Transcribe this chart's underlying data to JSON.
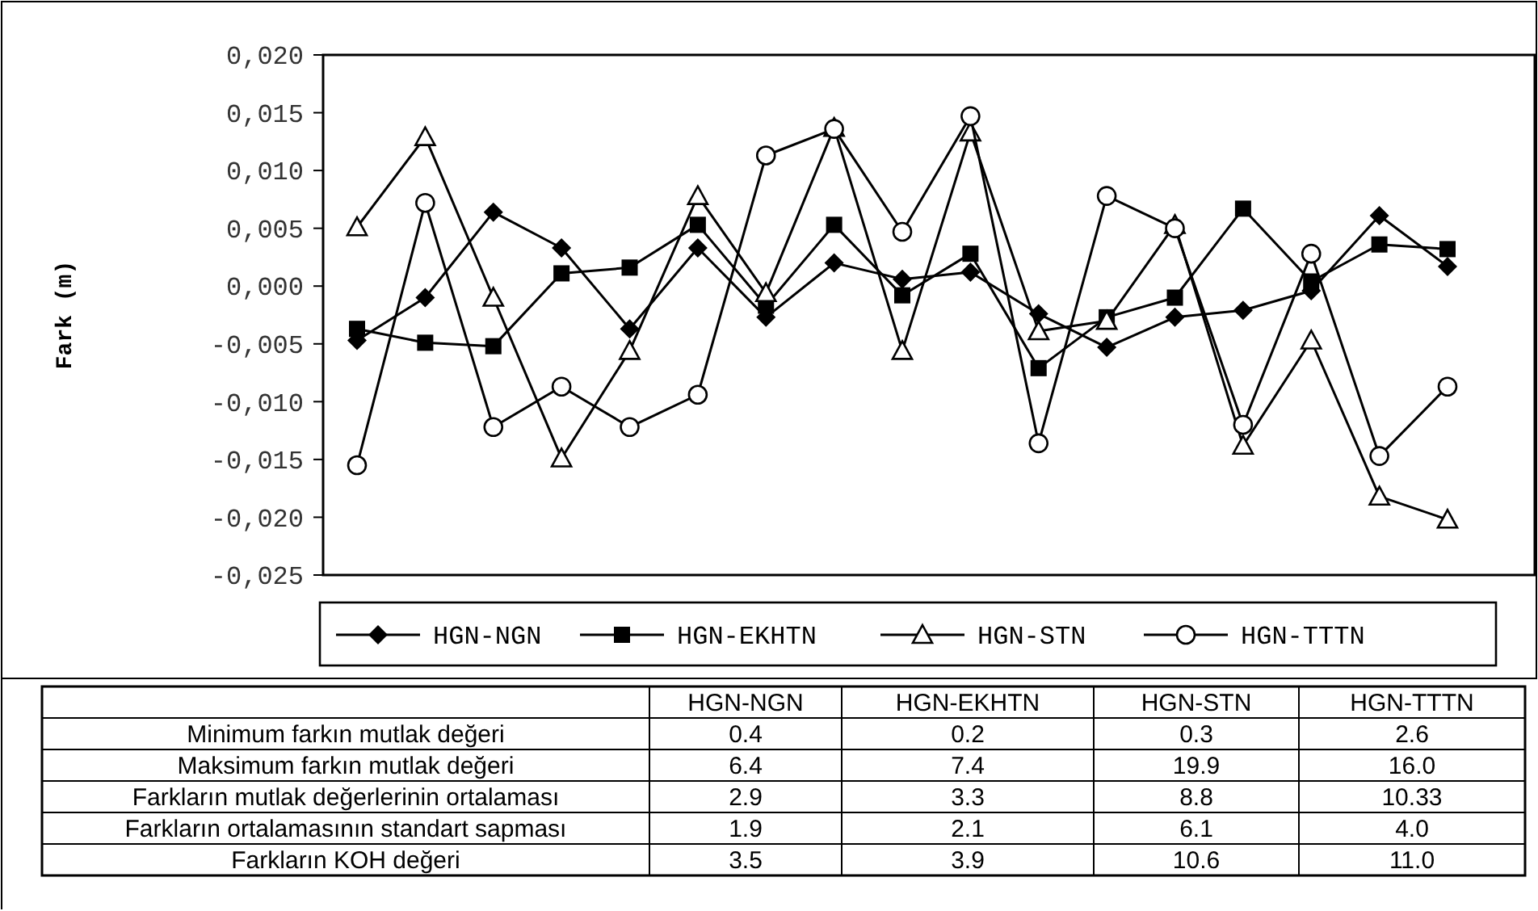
{
  "chart_data": [
    {
      "type": "line",
      "ylabel": "Fark (m)",
      "categories": [
        null,
        null,
        null,
        null,
        null,
        null,
        null,
        null,
        null,
        null,
        null,
        null,
        null,
        null,
        null,
        null,
        null
      ],
      "ylim": [
        -0.025,
        0.02
      ],
      "yticks": [
        {
          "value": 0.02,
          "label": "0,020"
        },
        {
          "value": 0.015,
          "label": "0,015"
        },
        {
          "value": 0.01,
          "label": "0,010"
        },
        {
          "value": 0.005,
          "label": "0,005"
        },
        {
          "value": 0,
          "label": "0,000"
        },
        {
          "value": -0.005,
          "label": "-0,005"
        },
        {
          "value": -0.01,
          "label": "-0,010"
        },
        {
          "value": -0.015,
          "label": "-0,015"
        },
        {
          "value": -0.02,
          "label": "-0,020"
        },
        {
          "value": -0.025,
          "label": "-0,025"
        }
      ],
      "grid": false,
      "legend": "bottom",
      "tick_labels": "y",
      "line_style": "solid",
      "series": [
        {
          "name": "HGN-NGN",
          "color": "#000000",
          "marker": "diamond",
          "values": [
            -0.0047,
            -0.001,
            0.0064,
            0.0033,
            -0.0037,
            0.0033,
            -0.0027,
            0.002,
            0.0006,
            0.0012,
            -0.0024,
            -0.0053,
            -0.0027,
            -0.0021,
            -0.0004,
            0.0061,
            0.0017
          ]
        },
        {
          "name": "HGN-EKHTN",
          "color": "#000000",
          "marker": "square",
          "values": [
            -0.0037,
            -0.0049,
            -0.0052,
            0.0011,
            0.0016,
            0.0053,
            -0.0017,
            0.0053,
            -0.0008,
            0.0028,
            -0.0071,
            -0.0027,
            -0.001,
            0.0067,
            0.0004,
            0.0036,
            0.0032
          ]
        },
        {
          "name": "HGN-STN",
          "color": "#000000",
          "marker": "triangle",
          "values": [
            0.0051,
            0.0129,
            -0.001,
            -0.0149,
            -0.0056,
            0.0078,
            -0.0006,
            0.0137,
            -0.0056,
            0.0133,
            -0.0039,
            -0.003,
            0.0053,
            -0.0138,
            -0.0047,
            -0.0182,
            -0.0202
          ]
        },
        {
          "name": "HGN-TTTN",
          "color": "#000000",
          "marker": "circle",
          "values": [
            -0.0155,
            0.0072,
            -0.0122,
            -0.0087,
            -0.0122,
            -0.0094,
            0.0113,
            0.0136,
            0.0047,
            0.0147,
            -0.0136,
            0.0078,
            0.005,
            -0.012,
            0.0028,
            -0.0147,
            -0.0087
          ]
        }
      ]
    },
    {
      "type": "other",
      "categories": [
        "HGN-NGN",
        "HGN-EKHTN",
        "HGN-STN",
        "HGN-TTTN"
      ],
      "y_categories": [
        "Minimum farkın mutlak değeri",
        "Maksimum farkın mutlak değeri",
        "Farkların mutlak değerlerinin ortalaması",
        "Farkların ortalamasının standart sapması",
        "Farkların KOH değeri"
      ],
      "cell_labels": [
        [
          "0.4",
          "0.2",
          "0.3",
          "2.6"
        ],
        [
          "6.4",
          "7.4",
          "19.9",
          "16.0"
        ],
        [
          "2.9",
          "3.3",
          "8.8",
          "10.33"
        ],
        [
          "1.9",
          "2.1",
          "6.1",
          "4.0"
        ],
        [
          "3.5",
          "3.9",
          "10.6",
          "11.0"
        ]
      ]
    }
  ]
}
